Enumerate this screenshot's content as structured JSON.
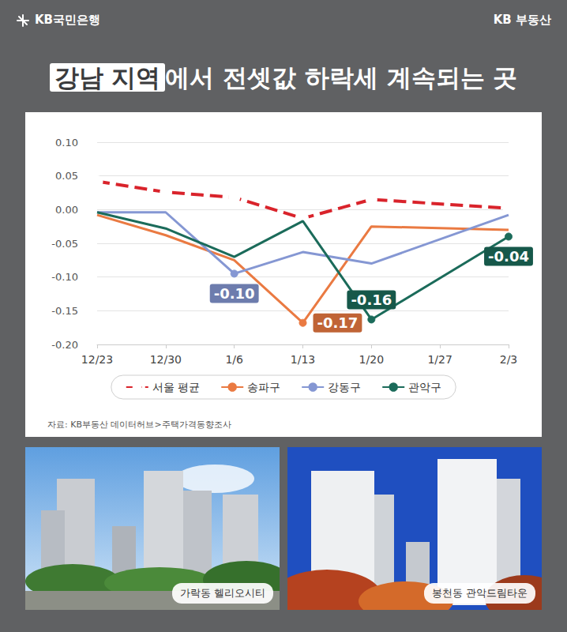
{
  "header": {
    "brand_left": "KB국민은행",
    "brand_right": "KB 부동산",
    "title_highlight": "강남 지역",
    "title_rest": "에서 전셋값 하락세 계속되는 곳"
  },
  "chart_data": {
    "type": "line",
    "categories": [
      "12/23",
      "12/30",
      "1/6",
      "1/13",
      "1/20",
      "1/27",
      "2/3"
    ],
    "series": [
      {
        "name": "서울 평균",
        "color": "#d9232b",
        "line_style": "dashed",
        "marker": "open_circle",
        "values": [
          0.042,
          0.026,
          0.018,
          -0.013,
          0.015,
          null,
          0.002
        ]
      },
      {
        "name": "송파구",
        "color": "#ea7a42",
        "line_style": "solid",
        "marker": "none",
        "values": [
          -0.008,
          -0.038,
          -0.075,
          -0.168,
          -0.025,
          null,
          -0.03
        ]
      },
      {
        "name": "강동구",
        "color": "#8597d3",
        "line_style": "solid",
        "marker": "none",
        "values": [
          -0.004,
          -0.004,
          -0.095,
          -0.063,
          -0.08,
          null,
          -0.008
        ]
      },
      {
        "name": "관악구",
        "color": "#1b6b5a",
        "line_style": "solid",
        "marker": "none",
        "values": [
          -0.004,
          -0.028,
          -0.07,
          -0.017,
          -0.163,
          null,
          -0.04
        ]
      }
    ],
    "annotations": [
      {
        "series": "강동구",
        "x": "1/6",
        "text": "-0.10"
      },
      {
        "series": "송파구",
        "x": "1/13",
        "text": "-0.17"
      },
      {
        "series": "관악구",
        "x": "1/20",
        "text": "-0.16"
      },
      {
        "series": "관악구",
        "x": "2/3",
        "text": "-0.04"
      }
    ],
    "ylim": [
      -0.2,
      0.1
    ],
    "yticks": [
      {
        "value": -0.2,
        "label": "-0.20"
      },
      {
        "value": -0.15,
        "label": "-0.15"
      },
      {
        "value": -0.1,
        "label": "-0.10"
      },
      {
        "value": -0.05,
        "label": "-0.05"
      },
      {
        "value": 0,
        "label": "0.00"
      },
      {
        "value": 0.05,
        "label": "0.05"
      },
      {
        "value": 0.1,
        "label": "0.10"
      }
    ],
    "grid": true,
    "legend": "bottom",
    "source": "자료: KB부동산 데이터허브>주택가격동향조사"
  },
  "photos": [
    {
      "caption": "가락동 헬리오시티"
    },
    {
      "caption": "봉천동 관악드림타운"
    }
  ]
}
